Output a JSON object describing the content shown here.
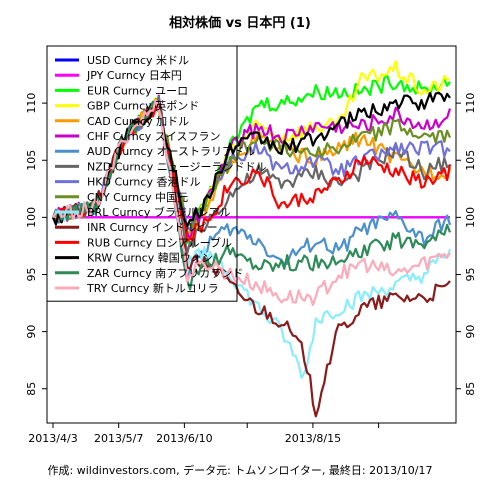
{
  "chart_data": {
    "type": "line",
    "title": "相対株価 vs 日本円 (1)",
    "footer": "作成: wildinvestors.com, データ元: トムソンロイター, 最終日: 2013/10/17",
    "xlabel": "",
    "ylabel": "",
    "ylim": [
      82,
      115
    ],
    "y_ticks": [
      85,
      90,
      95,
      100,
      105,
      110
    ],
    "x_tick_labels": [
      "2013/4/3",
      "2013/5/7",
      "2013/6/10",
      "2013/8/15"
    ],
    "x_tick_positions": [
      0,
      23,
      46,
      91
    ],
    "x_extra_ticks": [
      68,
      114
    ],
    "n_points": 140,
    "grid": false,
    "legend_position": "top-left",
    "series": [
      {
        "name": "USD Curncy 米ドル",
        "color": "#0000ff",
        "anchors": [
          [
            0,
            100
          ],
          [
            139,
            100
          ]
        ]
      },
      {
        "name": "JPY Curncy 日本円",
        "color": "#ff00ff",
        "anchors": [
          [
            0,
            100
          ],
          [
            139,
            100
          ]
        ]
      },
      {
        "name": "EUR Curncy ユーロ",
        "color": "#00ff00",
        "anchors": [
          [
            0,
            100
          ],
          [
            15,
            101
          ],
          [
            25,
            107
          ],
          [
            37,
            110
          ],
          [
            47,
            98
          ],
          [
            55,
            102
          ],
          [
            62,
            106
          ],
          [
            72,
            110
          ],
          [
            80,
            110
          ],
          [
            92,
            111
          ],
          [
            100,
            111
          ],
          [
            108,
            111
          ],
          [
            120,
            112
          ],
          [
            130,
            111
          ],
          [
            139,
            112
          ]
        ]
      },
      {
        "name": "GBP Curncy 英ポンド",
        "color": "#ffff00",
        "anchors": [
          [
            0,
            100
          ],
          [
            15,
            101
          ],
          [
            25,
            107
          ],
          [
            37,
            110
          ],
          [
            47,
            98
          ],
          [
            55,
            102
          ],
          [
            62,
            106
          ],
          [
            72,
            108
          ],
          [
            80,
            107
          ],
          [
            92,
            108
          ],
          [
            100,
            108
          ],
          [
            108,
            112
          ],
          [
            120,
            113
          ],
          [
            130,
            111
          ],
          [
            139,
            112
          ]
        ]
      },
      {
        "name": "CAD Curncy 加ドル",
        "color": "#ff9900",
        "anchors": [
          [
            0,
            100
          ],
          [
            15,
            101
          ],
          [
            25,
            107
          ],
          [
            37,
            110
          ],
          [
            47,
            98
          ],
          [
            55,
            101
          ],
          [
            62,
            105
          ],
          [
            72,
            107
          ],
          [
            80,
            106
          ],
          [
            92,
            105
          ],
          [
            100,
            106
          ],
          [
            108,
            107
          ],
          [
            120,
            105
          ],
          [
            130,
            104
          ],
          [
            139,
            104
          ]
        ]
      },
      {
        "name": "CHF Curncy スイスフラン",
        "color": "#cc00cc",
        "anchors": [
          [
            0,
            100
          ],
          [
            15,
            101
          ],
          [
            25,
            107
          ],
          [
            37,
            110
          ],
          [
            47,
            98
          ],
          [
            55,
            102
          ],
          [
            62,
            106
          ],
          [
            72,
            108
          ],
          [
            80,
            107
          ],
          [
            92,
            108
          ],
          [
            100,
            108
          ],
          [
            108,
            108
          ],
          [
            120,
            109
          ],
          [
            130,
            108
          ],
          [
            139,
            109
          ]
        ]
      },
      {
        "name": "AUD Curncy オーストラリアドル",
        "color": "#4a8fd0",
        "anchors": [
          [
            0,
            100
          ],
          [
            15,
            101
          ],
          [
            25,
            107
          ],
          [
            37,
            110
          ],
          [
            47,
            95
          ],
          [
            55,
            98
          ],
          [
            62,
            99
          ],
          [
            72,
            98
          ],
          [
            80,
            96
          ],
          [
            92,
            98
          ],
          [
            100,
            97
          ],
          [
            108,
            99
          ],
          [
            120,
            100
          ],
          [
            130,
            98
          ],
          [
            139,
            100
          ]
        ]
      },
      {
        "name": "NZD Curncy ニュージーランドドル",
        "color": "#666666",
        "anchors": [
          [
            0,
            100
          ],
          [
            15,
            101
          ],
          [
            25,
            107
          ],
          [
            37,
            110
          ],
          [
            47,
            97
          ],
          [
            55,
            100
          ],
          [
            62,
            102
          ],
          [
            72,
            104
          ],
          [
            80,
            103
          ],
          [
            92,
            104
          ],
          [
            100,
            103
          ],
          [
            108,
            104
          ],
          [
            120,
            106
          ],
          [
            130,
            104
          ],
          [
            139,
            105
          ]
        ]
      },
      {
        "name": "HKD Curncy 香港ドル",
        "color": "#7070dd",
        "anchors": [
          [
            0,
            100
          ],
          [
            15,
            101
          ],
          [
            25,
            107
          ],
          [
            37,
            110
          ],
          [
            47,
            99
          ],
          [
            55,
            102
          ],
          [
            62,
            105
          ],
          [
            72,
            106
          ],
          [
            80,
            104
          ],
          [
            92,
            105
          ],
          [
            100,
            104
          ],
          [
            108,
            105
          ],
          [
            120,
            106
          ],
          [
            130,
            106
          ],
          [
            139,
            106
          ]
        ]
      },
      {
        "name": "CNY Curncy 中国元",
        "color": "#6b8e23",
        "anchors": [
          [
            0,
            100
          ],
          [
            15,
            101
          ],
          [
            25,
            107
          ],
          [
            37,
            110
          ],
          [
            47,
            99
          ],
          [
            55,
            102
          ],
          [
            62,
            105
          ],
          [
            72,
            107
          ],
          [
            80,
            106
          ],
          [
            92,
            106
          ],
          [
            100,
            106
          ],
          [
            108,
            107
          ],
          [
            120,
            108
          ],
          [
            130,
            107
          ],
          [
            139,
            107
          ]
        ]
      },
      {
        "name": "BRL Curncy ブラジルレアル",
        "color": "#88eeff",
        "anchors": [
          [
            0,
            100
          ],
          [
            15,
            101
          ],
          [
            25,
            107
          ],
          [
            37,
            110
          ],
          [
            47,
            96
          ],
          [
            55,
            97
          ],
          [
            62,
            95
          ],
          [
            72,
            92
          ],
          [
            80,
            90
          ],
          [
            88,
            86
          ],
          [
            92,
            91
          ],
          [
            100,
            92
          ],
          [
            108,
            93
          ],
          [
            120,
            94
          ],
          [
            130,
            95
          ],
          [
            139,
            97
          ]
        ]
      },
      {
        "name": "INR Curncy インドルピー",
        "color": "#8b1a1a",
        "anchors": [
          [
            0,
            100
          ],
          [
            15,
            101
          ],
          [
            25,
            107
          ],
          [
            37,
            110
          ],
          [
            47,
            96
          ],
          [
            55,
            96
          ],
          [
            62,
            94
          ],
          [
            72,
            92
          ],
          [
            80,
            91
          ],
          [
            88,
            88
          ],
          [
            92,
            83
          ],
          [
            96,
            87
          ],
          [
            100,
            90
          ],
          [
            108,
            92
          ],
          [
            120,
            93
          ],
          [
            130,
            93
          ],
          [
            139,
            94
          ]
        ]
      },
      {
        "name": "RUB Curncy ロシアルーブル",
        "color": "#ff0000",
        "anchors": [
          [
            0,
            100
          ],
          [
            15,
            101
          ],
          [
            25,
            107
          ],
          [
            37,
            110
          ],
          [
            47,
            98
          ],
          [
            55,
            100
          ],
          [
            62,
            103
          ],
          [
            72,
            104
          ],
          [
            80,
            101
          ],
          [
            92,
            102
          ],
          [
            100,
            103
          ],
          [
            108,
            105
          ],
          [
            120,
            104
          ],
          [
            130,
            103
          ],
          [
            139,
            104
          ]
        ]
      },
      {
        "name": "KRW Curncy 韓国ウォン",
        "color": "#000000",
        "anchors": [
          [
            0,
            100
          ],
          [
            15,
            101
          ],
          [
            25,
            107
          ],
          [
            37,
            110
          ],
          [
            47,
            99
          ],
          [
            55,
            102
          ],
          [
            62,
            106
          ],
          [
            72,
            107
          ],
          [
            80,
            106
          ],
          [
            92,
            107
          ],
          [
            100,
            108
          ],
          [
            108,
            109
          ],
          [
            120,
            110
          ],
          [
            130,
            110
          ],
          [
            139,
            111
          ]
        ]
      },
      {
        "name": "ZAR Curncy 南アフリカランド",
        "color": "#2e8b57",
        "anchors": [
          [
            0,
            100
          ],
          [
            15,
            101
          ],
          [
            25,
            107
          ],
          [
            37,
            110
          ],
          [
            47,
            94
          ],
          [
            55,
            96
          ],
          [
            62,
            97
          ],
          [
            72,
            96
          ],
          [
            80,
            96
          ],
          [
            92,
            96
          ],
          [
            100,
            96
          ],
          [
            108,
            97
          ],
          [
            120,
            98
          ],
          [
            130,
            98
          ],
          [
            139,
            99
          ]
        ]
      },
      {
        "name": "TRY Curncy 新トルコリラ",
        "color": "#ffaabb",
        "anchors": [
          [
            0,
            100
          ],
          [
            15,
            101
          ],
          [
            25,
            107
          ],
          [
            37,
            110
          ],
          [
            47,
            95
          ],
          [
            55,
            96
          ],
          [
            62,
            95
          ],
          [
            72,
            94
          ],
          [
            80,
            93
          ],
          [
            92,
            93
          ],
          [
            100,
            95
          ],
          [
            108,
            96
          ],
          [
            120,
            95
          ],
          [
            130,
            96
          ],
          [
            139,
            97
          ]
        ]
      }
    ]
  }
}
